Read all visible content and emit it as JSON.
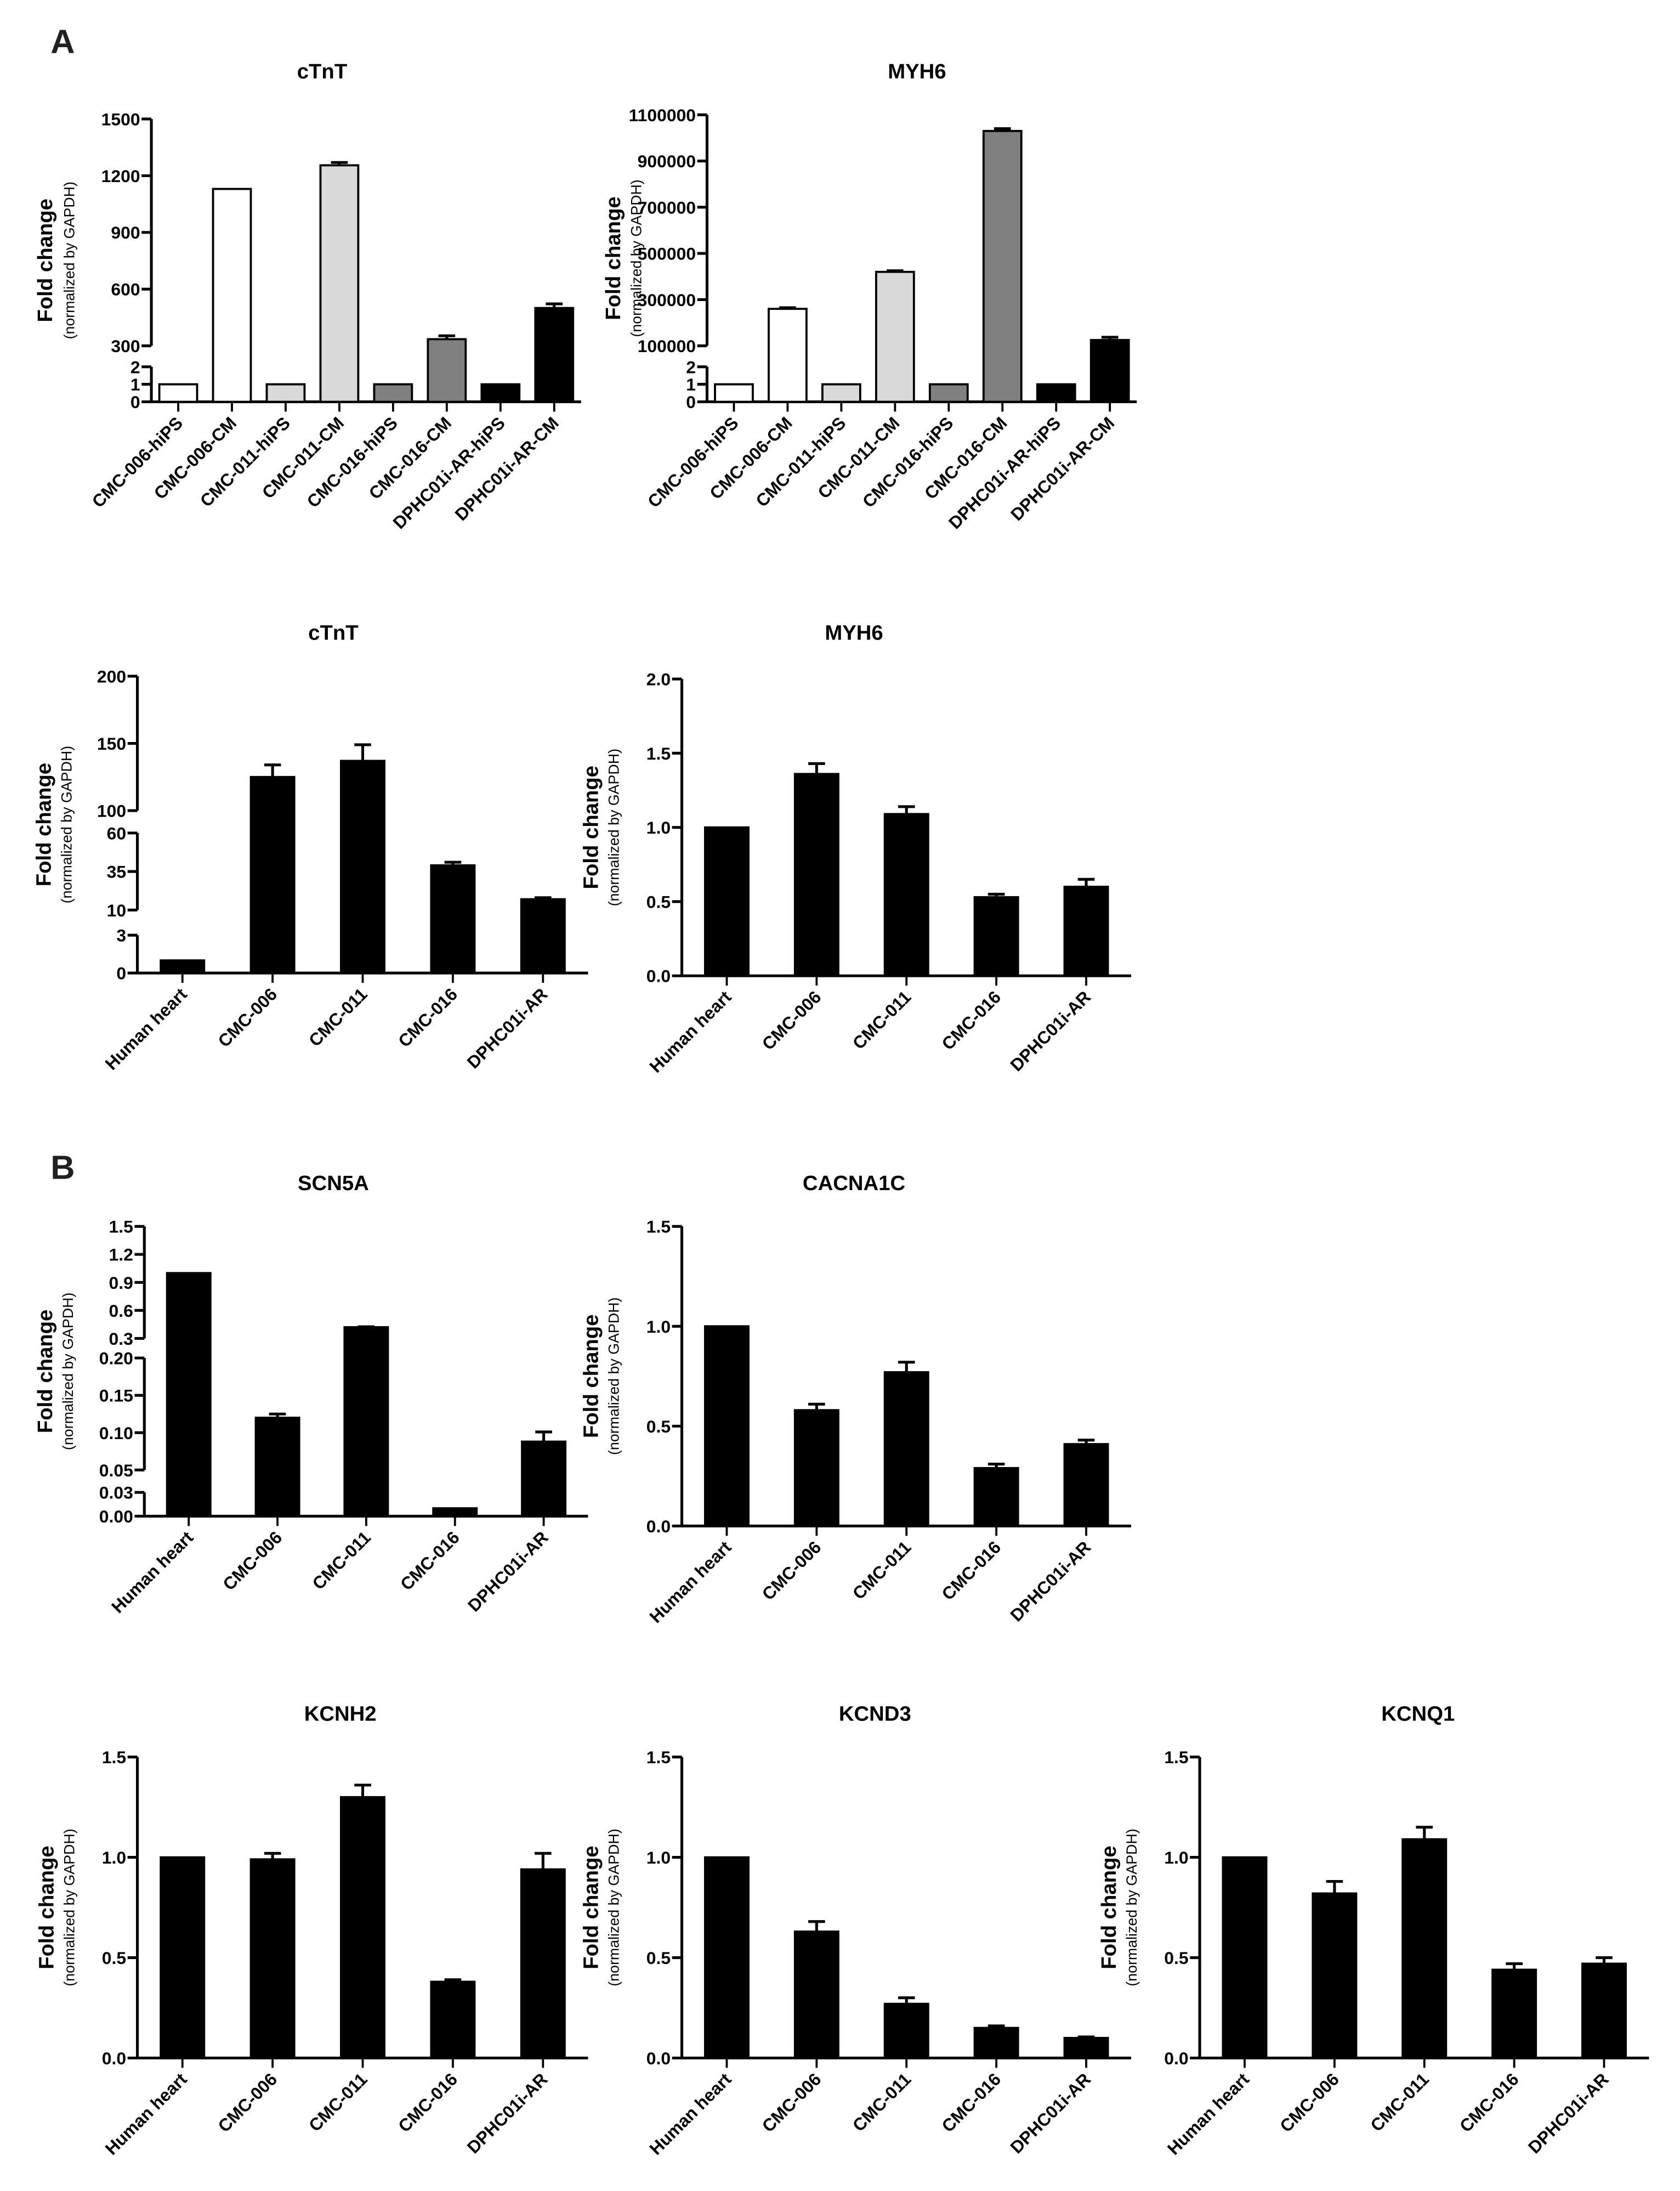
{
  "panels": [
    "A",
    "B"
  ],
  "y_title": "Fold change",
  "y_subtitle": "(normalized by GAPDH)",
  "chart_data": [
    {
      "id": "a1-ctnt",
      "type": "bar",
      "title": "cTnT",
      "xlabel": "",
      "ylabel": "Fold change (normalized by GAPDH)",
      "categories": [
        "CMC-006-hiPS",
        "CMC-006-CM",
        "CMC-011-hiPS",
        "CMC-011-CM",
        "CMC-016-hiPS",
        "CMC-016-CM",
        "DPHC01i-AR-hiPS",
        "DPHC01i-AR-CM"
      ],
      "values": [
        1,
        1130,
        1,
        1255,
        1,
        335,
        1,
        500
      ],
      "errors": [
        0,
        0,
        0,
        15,
        0,
        18,
        0,
        22
      ],
      "colors": [
        "#ffffff",
        "#ffffff",
        "#d9d9d9",
        "#d9d9d9",
        "#808080",
        "#808080",
        "#000000",
        "#000000"
      ],
      "y_segments": [
        {
          "range": [
            0,
            2
          ],
          "ticks": [
            "0",
            "1",
            "2"
          ]
        },
        {
          "range": [
            300,
            1500
          ],
          "ticks": [
            "300",
            "600",
            "900",
            "1200",
            "1500"
          ]
        }
      ]
    },
    {
      "id": "a1-myh6",
      "type": "bar",
      "title": "MYH6",
      "xlabel": "",
      "ylabel": "Fold change (normalized by GAPDH)",
      "categories": [
        "CMC-006-hiPS",
        "CMC-006-CM",
        "CMC-011-hiPS",
        "CMC-011-CM",
        "CMC-016-hiPS",
        "CMC-016-CM",
        "DPHC01i-AR-hiPS",
        "DPHC01i-AR-CM"
      ],
      "values": [
        1,
        260000,
        1,
        420000,
        1,
        1030000,
        1,
        125000
      ],
      "errors": [
        0,
        5000,
        0,
        5000,
        0,
        10000,
        0,
        12000
      ],
      "colors": [
        "#ffffff",
        "#ffffff",
        "#d9d9d9",
        "#d9d9d9",
        "#808080",
        "#808080",
        "#000000",
        "#000000"
      ],
      "y_segments": [
        {
          "range": [
            0,
            2
          ],
          "ticks": [
            "0",
            "1",
            "2"
          ]
        },
        {
          "range": [
            100000,
            1100000
          ],
          "ticks": [
            "100000",
            "300000",
            "500000",
            "700000",
            "900000",
            "1100000"
          ]
        }
      ]
    },
    {
      "id": "a2-ctnt",
      "type": "bar",
      "title": "cTnT",
      "xlabel": "",
      "ylabel": "Fold change (normalized by GAPDH)",
      "categories": [
        "Human heart",
        "CMC-006",
        "CMC-011",
        "CMC-016",
        "DPHC01i-AR"
      ],
      "values": [
        1,
        125,
        137,
        39,
        17
      ],
      "errors": [
        0,
        9,
        12,
        2,
        1
      ],
      "colors": [
        "#000000",
        "#000000",
        "#000000",
        "#000000",
        "#000000"
      ],
      "y_segments": [
        {
          "range": [
            0,
            3
          ],
          "ticks": [
            "0",
            "3"
          ]
        },
        {
          "range": [
            10,
            60
          ],
          "ticks": [
            "10",
            "35",
            "60"
          ]
        },
        {
          "range": [
            100,
            200
          ],
          "ticks": [
            "100",
            "150",
            "200"
          ]
        }
      ]
    },
    {
      "id": "a2-myh6",
      "type": "bar",
      "title": "MYH6",
      "xlabel": "",
      "ylabel": "Fold change (normalized by GAPDH)",
      "categories": [
        "Human heart",
        "CMC-006",
        "CMC-011",
        "CMC-016",
        "DPHC01i-AR"
      ],
      "values": [
        1.0,
        1.36,
        1.09,
        0.53,
        0.6
      ],
      "errors": [
        0,
        0.07,
        0.05,
        0.02,
        0.05
      ],
      "colors": [
        "#000000",
        "#000000",
        "#000000",
        "#000000",
        "#000000"
      ],
      "y_segments": [
        {
          "range": [
            0,
            2.0
          ],
          "ticks": [
            "0.0",
            "0.5",
            "1.0",
            "1.5",
            "2.0"
          ]
        }
      ]
    },
    {
      "id": "b-scn5a",
      "type": "bar",
      "title": "SCN5A",
      "xlabel": "",
      "ylabel": "Fold change (normalized by GAPDH)",
      "categories": [
        "Human heart",
        "CMC-006",
        "CMC-011",
        "CMC-016",
        "DPHC01i-AR"
      ],
      "values": [
        1.0,
        0.12,
        0.42,
        0.01,
        0.088
      ],
      "errors": [
        0,
        0.005,
        0.005,
        0,
        0.013
      ],
      "colors": [
        "#000000",
        "#000000",
        "#000000",
        "#000000",
        "#000000"
      ],
      "y_segments": [
        {
          "range": [
            0,
            0.03
          ],
          "ticks": [
            "0.00",
            "0.03"
          ]
        },
        {
          "range": [
            0.05,
            0.2
          ],
          "ticks": [
            "0.05",
            "0.10",
            "0.15",
            "0.20"
          ]
        },
        {
          "range": [
            0.3,
            1.5
          ],
          "ticks": [
            "0.3",
            "0.6",
            "0.9",
            "1.2",
            "1.5"
          ]
        }
      ]
    },
    {
      "id": "b-cacna1c",
      "type": "bar",
      "title": "CACNA1C",
      "xlabel": "",
      "ylabel": "Fold change (normalized by GAPDH)",
      "categories": [
        "Human heart",
        "CMC-006",
        "CMC-011",
        "CMC-016",
        "DPHC01i-AR"
      ],
      "values": [
        1.0,
        0.58,
        0.77,
        0.29,
        0.41
      ],
      "errors": [
        0,
        0.03,
        0.05,
        0.02,
        0.02
      ],
      "colors": [
        "#000000",
        "#000000",
        "#000000",
        "#000000",
        "#000000"
      ],
      "y_segments": [
        {
          "range": [
            0,
            1.5
          ],
          "ticks": [
            "0.0",
            "0.5",
            "1.0",
            "1.5"
          ]
        }
      ]
    },
    {
      "id": "b-kcnh2",
      "type": "bar",
      "title": "KCNH2",
      "xlabel": "",
      "ylabel": "Fold change (normalized by GAPDH)",
      "categories": [
        "Human heart",
        "CMC-006",
        "CMC-011",
        "CMC-016",
        "DPHC01i-AR"
      ],
      "values": [
        1.0,
        0.99,
        1.3,
        0.38,
        0.94
      ],
      "errors": [
        0,
        0.03,
        0.06,
        0.01,
        0.08
      ],
      "colors": [
        "#000000",
        "#000000",
        "#000000",
        "#000000",
        "#000000"
      ],
      "y_segments": [
        {
          "range": [
            0,
            1.5
          ],
          "ticks": [
            "0.0",
            "0.5",
            "1.0",
            "1.5"
          ]
        }
      ]
    },
    {
      "id": "b-kcnd3",
      "type": "bar",
      "title": "KCND3",
      "xlabel": "",
      "ylabel": "Fold change (normalized by GAPDH)",
      "categories": [
        "Human heart",
        "CMC-006",
        "CMC-011",
        "CMC-016",
        "DPHC01i-AR"
      ],
      "values": [
        1.0,
        0.63,
        0.27,
        0.15,
        0.1
      ],
      "errors": [
        0,
        0.05,
        0.03,
        0.01,
        0.005
      ],
      "colors": [
        "#000000",
        "#000000",
        "#000000",
        "#000000",
        "#000000"
      ],
      "y_segments": [
        {
          "range": [
            0,
            1.5
          ],
          "ticks": [
            "0.0",
            "0.5",
            "1.0",
            "1.5"
          ]
        }
      ]
    },
    {
      "id": "b-kcnq1",
      "type": "bar",
      "title": "KCNQ1",
      "xlabel": "",
      "ylabel": "Fold change (normalized by GAPDH)",
      "categories": [
        "Human heart",
        "CMC-006",
        "CMC-011",
        "CMC-016",
        "DPHC01i-AR"
      ],
      "values": [
        1.0,
        0.82,
        1.09,
        0.44,
        0.47
      ],
      "errors": [
        0,
        0.06,
        0.06,
        0.03,
        0.03
      ],
      "colors": [
        "#000000",
        "#000000",
        "#000000",
        "#000000",
        "#000000"
      ],
      "y_segments": [
        {
          "range": [
            0,
            1.5
          ],
          "ticks": [
            "0.0",
            "0.5",
            "1.0",
            "1.5"
          ]
        }
      ]
    }
  ]
}
